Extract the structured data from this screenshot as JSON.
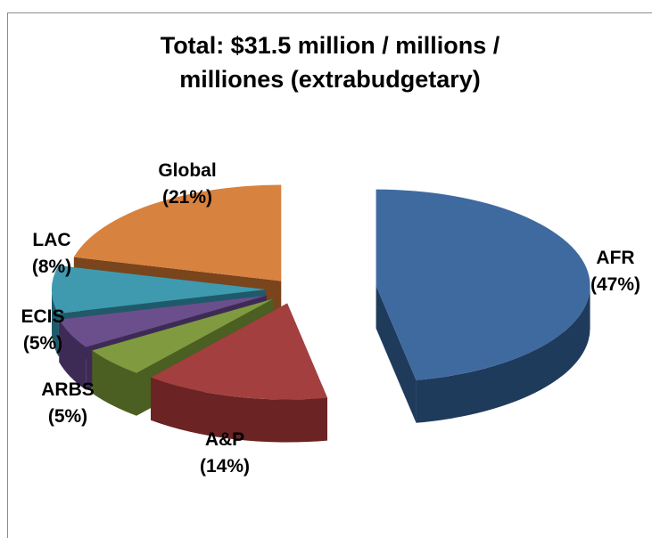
{
  "chart_data": {
    "type": "pie",
    "title_lines": [
      "Total: $31.5 million / millions /",
      "milliones (extrabudgetary)"
    ],
    "slices": [
      {
        "name": "AFR",
        "value": 47,
        "pct_label": "(47%)",
        "color": "#3f6aa0",
        "side": "#1f3b5c"
      },
      {
        "name": "A&P",
        "value": 14,
        "pct_label": "(14%)",
        "color": "#a33f3f",
        "side": "#6b2323"
      },
      {
        "name": "ARBS",
        "value": 5,
        "pct_label": "(5%)",
        "color": "#7f9a3f",
        "side": "#4c5f22"
      },
      {
        "name": "ECIS",
        "value": 5,
        "pct_label": "(5%)",
        "color": "#6b4f8c",
        "side": "#3d2b55"
      },
      {
        "name": "LAC",
        "value": 8,
        "pct_label": "(8%)",
        "color": "#3f9aaf",
        "side": "#1f5a6b"
      },
      {
        "name": "Global",
        "value": 21,
        "pct_label": "(21%)",
        "color": "#d8823f",
        "side": "#7a451c"
      }
    ]
  }
}
